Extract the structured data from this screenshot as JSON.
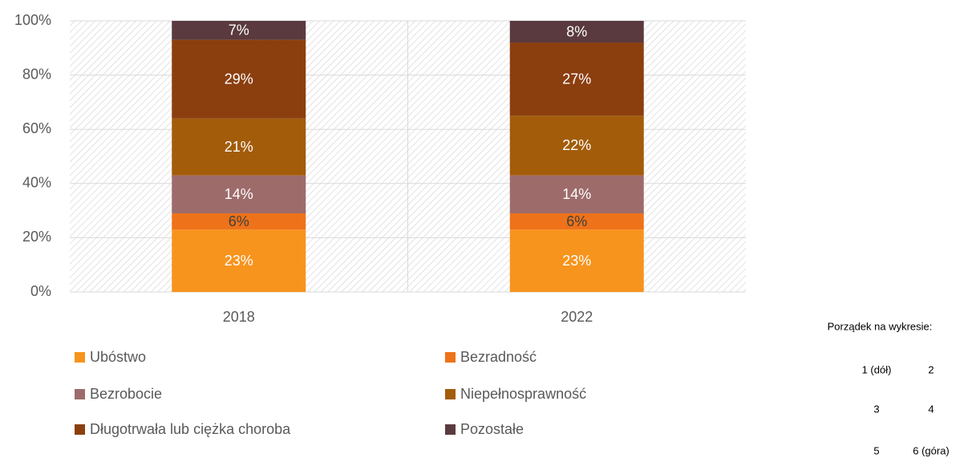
{
  "chart_data": {
    "type": "stacked_bar",
    "categories": [
      "2018",
      "2022"
    ],
    "series": [
      {
        "name": "Ubóstwo",
        "color": "#F7941D",
        "values": [
          23,
          23
        ],
        "value_labels": [
          "23%",
          "23%"
        ]
      },
      {
        "name": "Bezradność",
        "color": "#EE7219",
        "values": [
          6,
          6
        ],
        "value_labels": [
          "6%",
          "6%"
        ]
      },
      {
        "name": "Bezrobocie",
        "color": "#9E6B6B",
        "values": [
          14,
          14
        ],
        "value_labels": [
          "14%",
          "14%"
        ]
      },
      {
        "name": "Niepełnosprawność",
        "color": "#A35C0A",
        "values": [
          21,
          22
        ],
        "value_labels": [
          "21%",
          "22%"
        ]
      },
      {
        "name": "Długotrwała lub ciężka choroba",
        "color": "#8B3F0F",
        "values": [
          29,
          27
        ],
        "value_labels": [
          "29%",
          "27%"
        ]
      },
      {
        "name": "Pozostałe",
        "color": "#5A3A3E",
        "values": [
          7,
          8
        ],
        "value_labels": [
          "7%",
          "8%"
        ]
      }
    ],
    "ylim": [
      0,
      100
    ],
    "yticks": [
      {
        "value": 0,
        "label": "0%"
      },
      {
        "value": 20,
        "label": "20%"
      },
      {
        "value": 40,
        "label": "40%"
      },
      {
        "value": 60,
        "label": "60%"
      },
      {
        "value": 80,
        "label": "80%"
      },
      {
        "value": 100,
        "label": "100%"
      }
    ],
    "grid": true,
    "legend": "bottom",
    "annotations": {
      "title": "Porządek na wykresie:",
      "items": [
        "1 (dół)",
        "2",
        "3",
        "4",
        "5",
        "6 (góra)"
      ]
    }
  }
}
